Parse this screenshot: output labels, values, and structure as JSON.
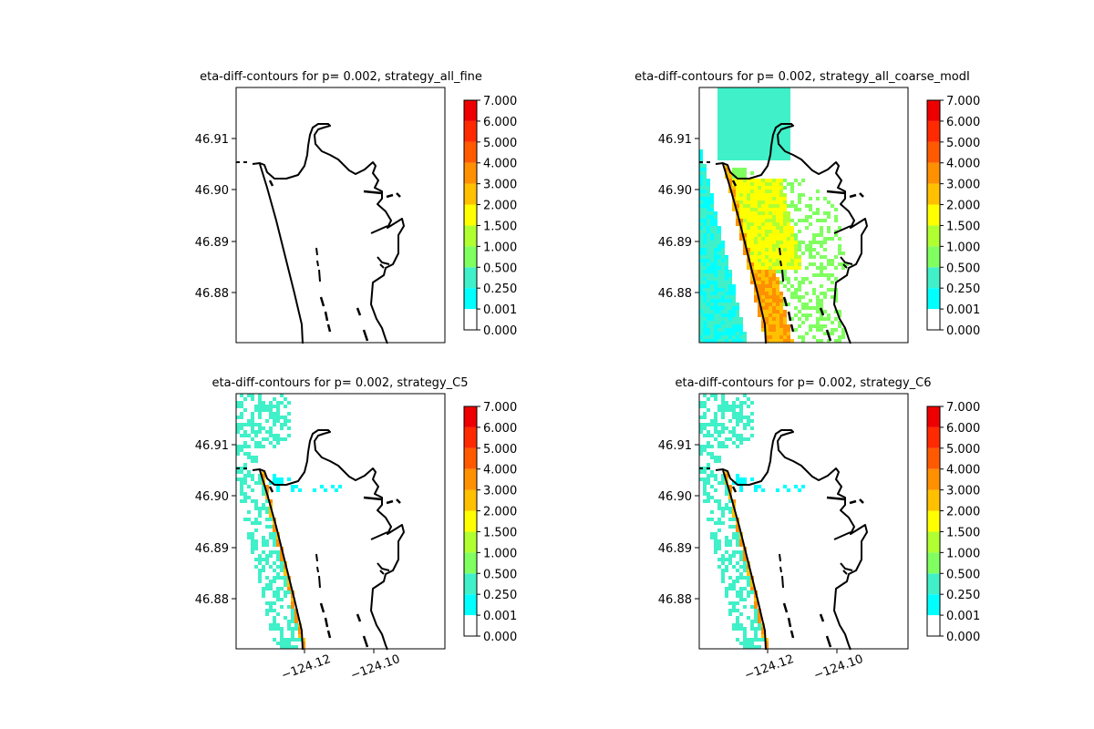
{
  "chart_data": {
    "type": "heatmap",
    "colorbar": {
      "levels": [
        0.0,
        0.001,
        0.25,
        0.5,
        1.0,
        1.5,
        2.0,
        3.0,
        4.0,
        5.0,
        6.0,
        7.0
      ],
      "tick_labels": [
        "0.000",
        "0.001",
        "0.250",
        "0.500",
        "1.000",
        "1.500",
        "2.000",
        "3.000",
        "4.000",
        "5.000",
        "6.000",
        "7.000"
      ],
      "colors": [
        "#ffffff",
        "#00ffff",
        "#40f0c8",
        "#80ff60",
        "#b0ff30",
        "#ffff00",
        "#ffc000",
        "#ff9000",
        "#ff5a00",
        "#ff2a00",
        "#ee0000"
      ]
    },
    "x_tick_labels": [
      "−124.12",
      "−124.10"
    ],
    "x_ticks": [
      -124.12,
      -124.1
    ],
    "y_tick_labels": [
      "46.88",
      "46.89",
      "46.90",
      "46.91"
    ],
    "y_ticks": [
      46.88,
      46.89,
      46.9,
      46.91
    ],
    "xlim": [
      -124.139,
      -124.079
    ],
    "ylim": [
      46.871,
      46.9205
    ],
    "panels": [
      {
        "title": "eta-diff-contours for p= 0.002, strategy_all_fine",
        "max_band": 0,
        "description_of_field": "all white"
      },
      {
        "title": "eta-diff-contours for p= 0.002, strategy_all_coarse_modI",
        "max_band": 10
      },
      {
        "title": "eta-diff-contours for p= 0.002, strategy_C5",
        "max_band": 10
      },
      {
        "title": "eta-diff-contours for p= 0.002, strategy_C6",
        "max_band": 10
      }
    ]
  }
}
